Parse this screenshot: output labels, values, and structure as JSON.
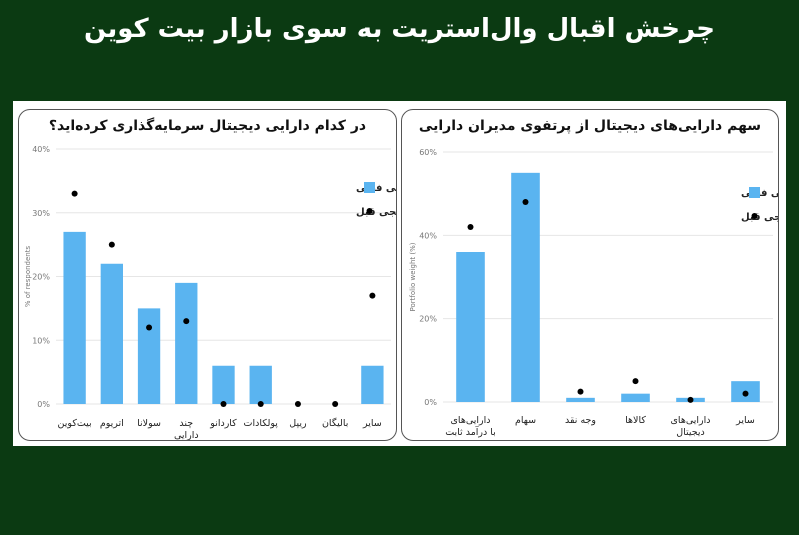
{
  "page_title": "چرخش اقبال وال‌استریت به سوی بازار بیت کوین",
  "chart_data": [
    {
      "type": "bar",
      "title": "در کدام دارایی دیجیتال سرمایه‌گذاری کرده‌اید؟",
      "ylabel": "% of respondents",
      "ylim": [
        0,
        40
      ],
      "yticks": [
        "0%",
        "10%",
        "20%",
        "30%",
        "40%"
      ],
      "categories": [
        [
          "بیت‌کوین"
        ],
        [
          "اتریوم"
        ],
        [
          "سولانا"
        ],
        [
          "چند",
          "دارایی"
        ],
        [
          "کاردانو"
        ],
        [
          "پولکادات"
        ],
        [
          "ریپل"
        ],
        [
          "بالیگان"
        ],
        [
          "سایر"
        ]
      ],
      "series": [
        {
          "name": "نظرسنجی فعلی",
          "kind": "bar",
          "color": "#5ab4f0",
          "values": [
            27,
            22,
            15,
            19,
            6,
            6,
            0,
            0,
            6
          ]
        },
        {
          "name": "نظرسنجی قبل",
          "kind": "dot",
          "color": "#000000",
          "values": [
            33,
            25,
            12,
            13,
            0,
            0,
            0,
            0,
            17
          ]
        }
      ],
      "legend_position": "top-right",
      "grid": true
    },
    {
      "type": "bar",
      "title": "سهم دارایی‌های دیجیتال از پرتفوی مدیران دارایی",
      "ylabel": "Portfolio weight (%)",
      "ylim": [
        0,
        60
      ],
      "yticks": [
        "0%",
        "20%",
        "40%",
        "60%"
      ],
      "categories": [
        [
          "دارایی‌های",
          "با درآمد ثابت"
        ],
        [
          "سهام"
        ],
        [
          "وجه نقد"
        ],
        [
          "کالاها"
        ],
        [
          "دارایی‌های",
          "دیجیتال"
        ],
        [
          "سایر"
        ]
      ],
      "series": [
        {
          "name": "نظرسنجی فعلی",
          "kind": "bar",
          "color": "#5ab4f0",
          "values": [
            36,
            55,
            1,
            2,
            1,
            5
          ]
        },
        {
          "name": "نظرسنجی قبل",
          "kind": "dot",
          "color": "#000000",
          "values": [
            42,
            48,
            2.5,
            5,
            0.5,
            2
          ]
        }
      ],
      "legend_position": "top-right",
      "grid": true
    }
  ]
}
